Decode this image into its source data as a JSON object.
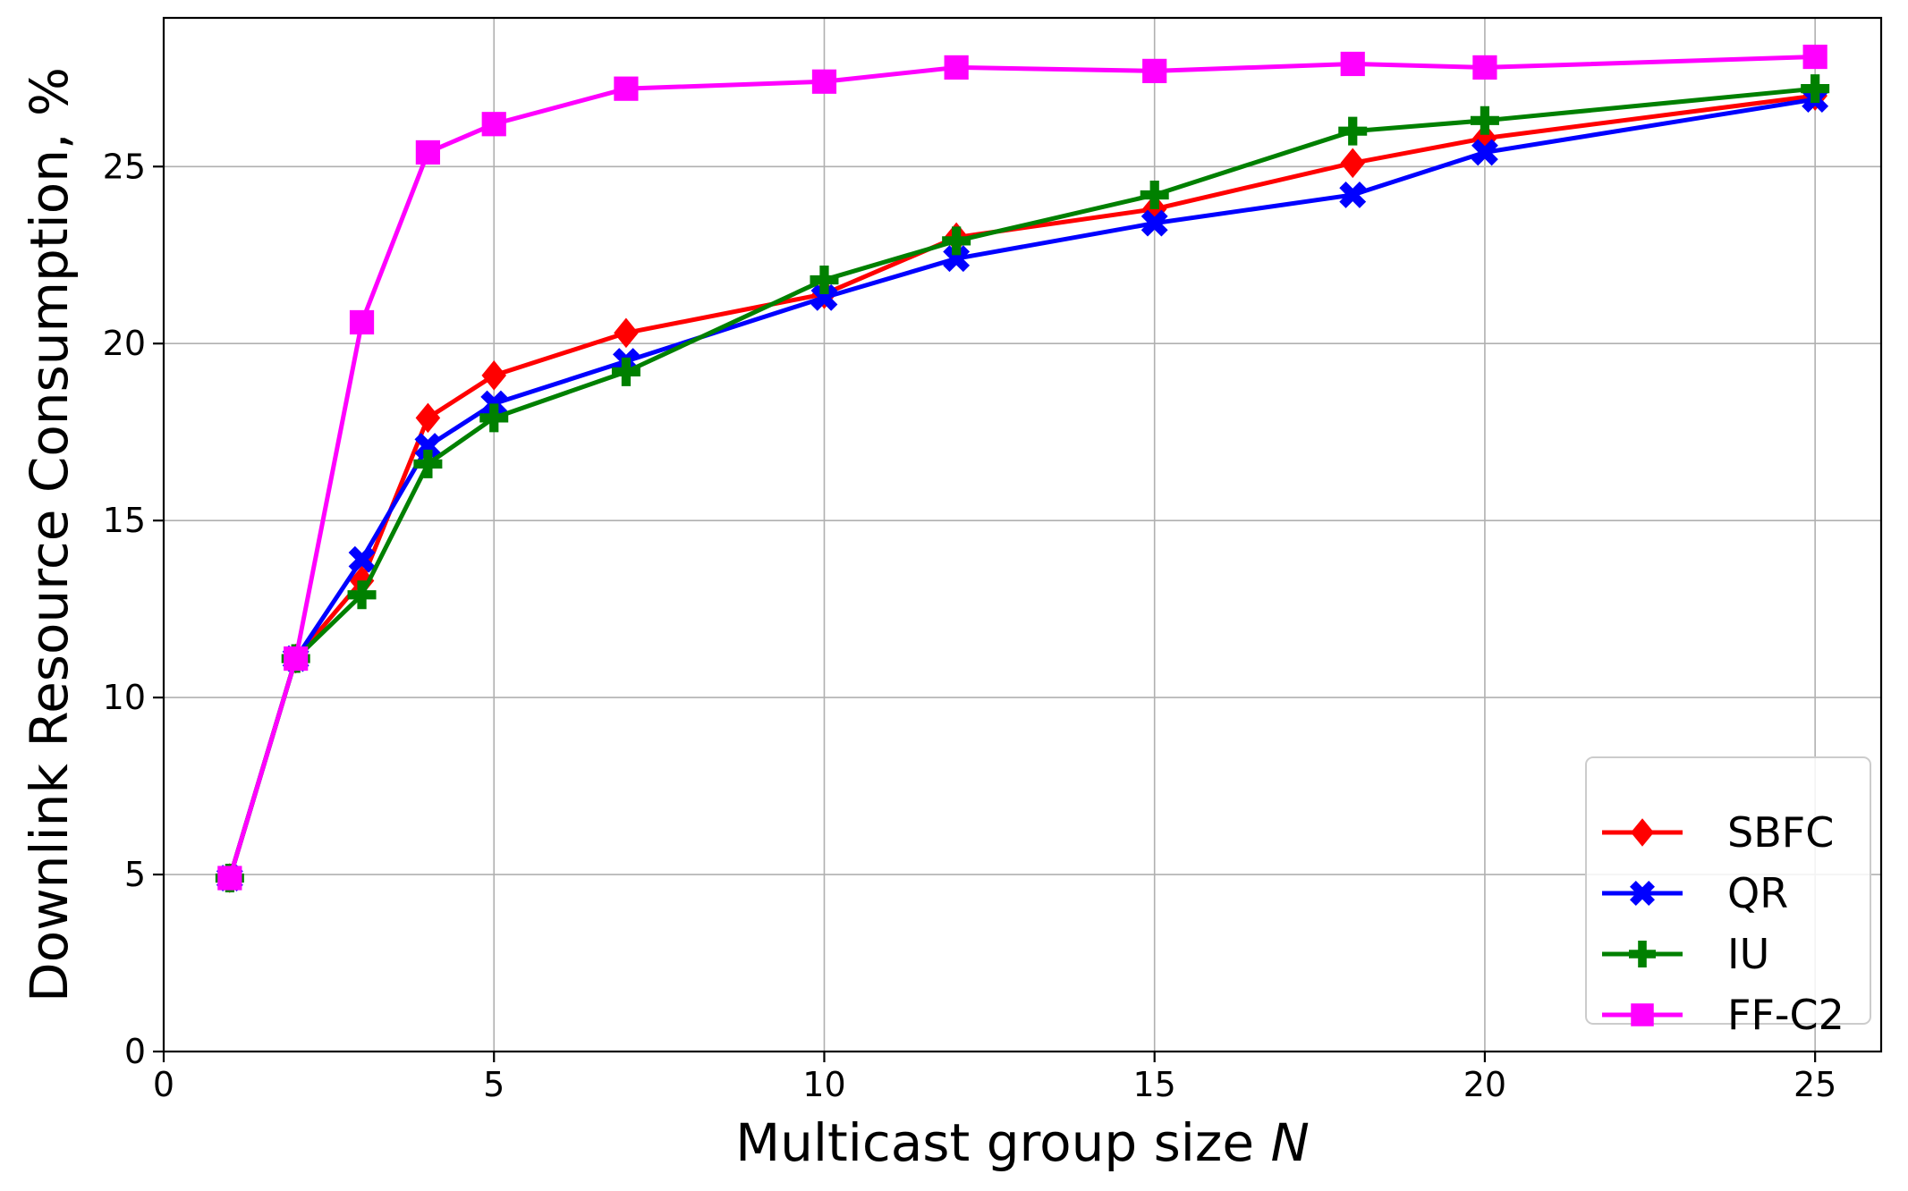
{
  "chart_data": {
    "type": "line",
    "title": "",
    "xlabel": "Multicast group size",
    "xlabel_var": "N",
    "ylabel": "Downlink Resource Consumption, %",
    "xlim": [
      0,
      26
    ],
    "ylim": [
      0,
      29.2
    ],
    "xticks": [
      0,
      5,
      10,
      15,
      20,
      25
    ],
    "yticks": [
      0,
      5,
      10,
      15,
      20,
      25
    ],
    "grid": true,
    "legend_position": "lower-right",
    "x": [
      1,
      2,
      3,
      4,
      5,
      7,
      10,
      12,
      15,
      18,
      20,
      25
    ],
    "series": [
      {
        "name": "SBFC",
        "color": "#ff0000",
        "marker": "diamond",
        "values": [
          4.9,
          11.1,
          13.3,
          17.9,
          19.1,
          20.3,
          21.4,
          23.0,
          23.8,
          25.1,
          25.8,
          27.0
        ]
      },
      {
        "name": "QR",
        "color": "#0000ff",
        "marker": "x",
        "values": [
          4.9,
          11.1,
          13.9,
          17.1,
          18.3,
          19.5,
          21.3,
          22.4,
          23.4,
          24.2,
          25.4,
          26.9
        ]
      },
      {
        "name": "IU",
        "color": "#008000",
        "marker": "plus",
        "values": [
          4.9,
          11.1,
          12.9,
          16.6,
          17.9,
          19.2,
          21.8,
          22.9,
          24.2,
          26.0,
          26.3,
          27.2
        ]
      },
      {
        "name": "FF-C2",
        "color": "#ff00ff",
        "marker": "square",
        "values": [
          4.9,
          11.1,
          20.6,
          25.4,
          26.2,
          27.2,
          27.4,
          27.8,
          27.7,
          27.9,
          27.8,
          28.1
        ]
      }
    ]
  }
}
